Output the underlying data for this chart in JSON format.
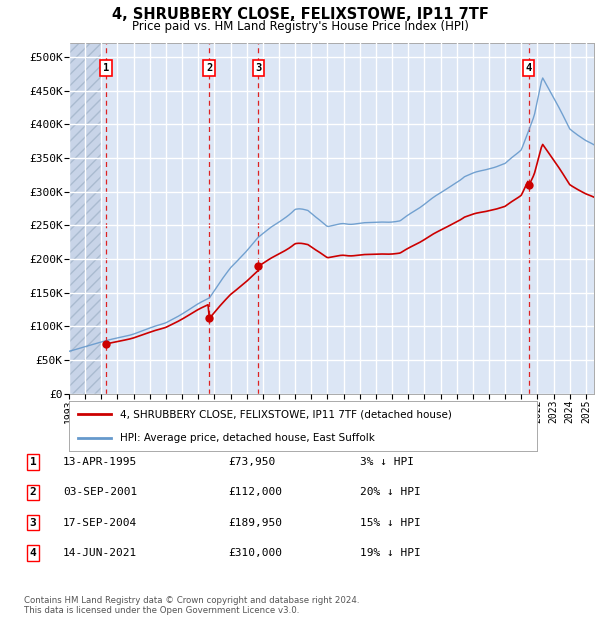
{
  "title1": "4, SHRUBBERY CLOSE, FELIXSTOWE, IP11 7TF",
  "title2": "Price paid vs. HM Land Registry's House Price Index (HPI)",
  "ylabel_ticks": [
    "£0",
    "£50K",
    "£100K",
    "£150K",
    "£200K",
    "£250K",
    "£300K",
    "£350K",
    "£400K",
    "£450K",
    "£500K"
  ],
  "ytick_values": [
    0,
    50000,
    100000,
    150000,
    200000,
    250000,
    300000,
    350000,
    400000,
    450000,
    500000
  ],
  "ylim": [
    0,
    520000
  ],
  "xlim_start": 1993.0,
  "xlim_end": 2025.5,
  "xtick_years": [
    1993,
    1994,
    1995,
    1996,
    1997,
    1998,
    1999,
    2000,
    2001,
    2002,
    2003,
    2004,
    2005,
    2006,
    2007,
    2008,
    2009,
    2010,
    2011,
    2012,
    2013,
    2014,
    2015,
    2016,
    2017,
    2018,
    2019,
    2020,
    2021,
    2022,
    2023,
    2024,
    2025
  ],
  "sale_dates_year": [
    1995.28,
    2001.67,
    2004.72,
    2021.45
  ],
  "sale_prices": [
    73950,
    112000,
    189950,
    310000
  ],
  "sale_labels": [
    "1",
    "2",
    "3",
    "4"
  ],
  "plot_bg_color": "#dce6f5",
  "grid_color": "#ffffff",
  "red_line_color": "#cc0000",
  "blue_line_color": "#6699cc",
  "dashed_vline_color": "#dd2222",
  "legend_entries": [
    "4, SHRUBBERY CLOSE, FELIXSTOWE, IP11 7TF (detached house)",
    "HPI: Average price, detached house, East Suffolk"
  ],
  "table_data": [
    [
      "1",
      "13-APR-1995",
      "£73,950",
      "3% ↓ HPI"
    ],
    [
      "2",
      "03-SEP-2001",
      "£112,000",
      "20% ↓ HPI"
    ],
    [
      "3",
      "17-SEP-2004",
      "£189,950",
      "15% ↓ HPI"
    ],
    [
      "4",
      "14-JUN-2021",
      "£310,000",
      "19% ↓ HPI"
    ]
  ],
  "footnote": "Contains HM Land Registry data © Crown copyright and database right 2024.\nThis data is licensed under the Open Government Licence v3.0.",
  "sale_marker_color": "#cc0000",
  "sale_marker_size": 6
}
